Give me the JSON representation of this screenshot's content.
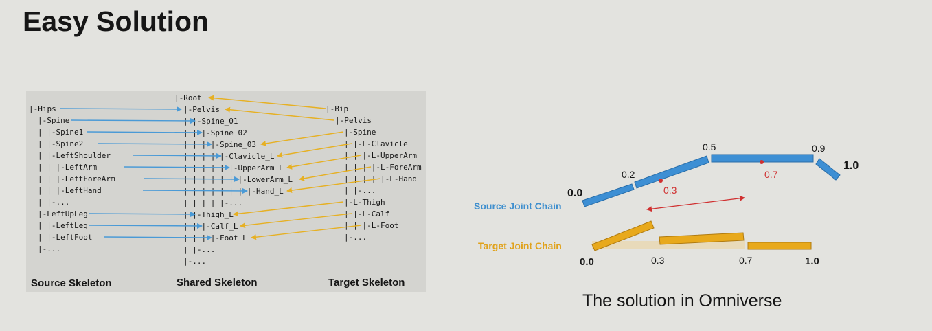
{
  "title": "Easy Solution",
  "caption": "The solution in Omniverse",
  "skeleton_diagram": {
    "labels": {
      "source": "Source Skeleton",
      "shared": "Shared Skeleton",
      "target": "Target Skeleton"
    },
    "source_lines": [
      "|-Hips",
      "|-Spine",
      "| |-Spine1",
      "|   |-Spine2",
      "|     |-LeftShoulder",
      "|     | |-LeftArm",
      "|     |   |-LeftForeArm",
      "|     |     |-LeftHand",
      "|     |-...",
      "|-LeftUpLeg",
      "| |-LeftLeg",
      "|   |-LeftFoot",
      "|-..."
    ],
    "shared_lines": [
      "|-Root",
      "|-Pelvis",
      "| |-Spine_01",
      "| | |-Spine_02",
      "| | | |-Spine_03",
      "| | | | |-Clavicle_L",
      "| | | | | |-UpperArm_L",
      "| | | | | | |-LowerArm_L",
      "| | | | | | | |-Hand_L",
      "| | | | |-...",
      "| |-Thigh_L",
      "| | |-Calf_L",
      "| | | |-Foot_L",
      "| |-...",
      "|-..."
    ],
    "target_lines": [
      "|-Bip",
      "|-Pelvis",
      "|-Spine",
      "| |-L-Clavicle",
      "| | |-L-UpperArm",
      "| | | |-L-ForeArm",
      "| | | | |-L-Hand",
      "| |-...",
      "|-L-Thigh",
      "| |-L-Calf",
      "| | |-L-Foot",
      "|-..."
    ],
    "colors": {
      "source_arrow": "#4a9ad6",
      "target_arrow": "#e6b023"
    }
  },
  "joint_chain_diagram": {
    "source_label": "Source Joint Chain",
    "target_label": "Target Joint Chain",
    "source_ticks": [
      "0.0",
      "0.2",
      "0.5",
      "0.9",
      "1.0"
    ],
    "source_marks": [
      "0.3",
      "0.7"
    ],
    "target_ticks": [
      "0.0",
      "0.3",
      "0.7",
      "1.0"
    ],
    "colors": {
      "source": "#3d8fd4",
      "target": "#e8a91c",
      "mark": "#d03030",
      "source_label": "#3f8fce",
      "target_label": "#e0a21c"
    }
  }
}
